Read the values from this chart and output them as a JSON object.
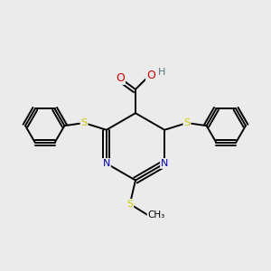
{
  "bg_color": "#ebebeb",
  "atom_colors": {
    "C": "#000000",
    "N": "#0000bb",
    "S": "#cccc00",
    "O": "#cc0000",
    "H": "#557777"
  },
  "bond_color": "#000000",
  "figsize": [
    3.0,
    3.0
  ],
  "dpi": 100
}
